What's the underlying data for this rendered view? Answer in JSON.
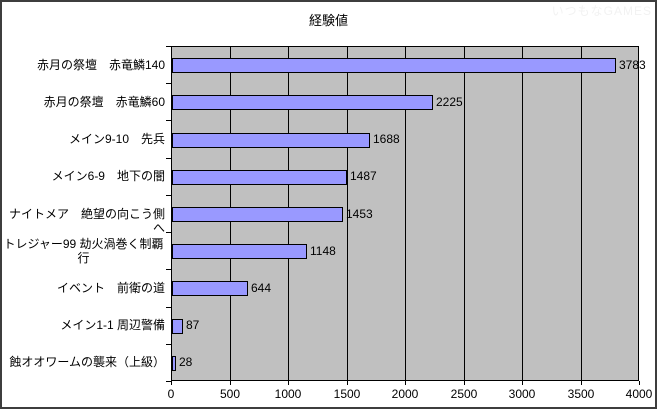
{
  "watermark": {
    "text": "いつもなGAMES"
  },
  "chart_data": {
    "type": "bar",
    "orientation": "horizontal",
    "title": "経験値",
    "categories": [
      "赤月の祭壇　赤竜鱗140",
      "赤月の祭壇　赤竜鱗60",
      "メイン9-10　先兵",
      "メイン6-9　地下の闇",
      "ナイトメア　絶望の向こう側へ",
      "トレジャー99 劫火渦巻く制覇\n行",
      "イベント　前衛の道",
      "メイン1-1 周辺警備",
      "蝕オオワームの襲来（上級）"
    ],
    "values": [
      3783,
      2225,
      1688,
      1487,
      1453,
      1148,
      644,
      87,
      28
    ],
    "value_labels": [
      "3783",
      "2225",
      "1688",
      "1487",
      "1453",
      "1148",
      "644",
      "87",
      "28"
    ],
    "xlabel": "",
    "ylabel": "",
    "xlim": [
      0,
      4000
    ],
    "xticks": [
      0,
      500,
      1000,
      1500,
      2000,
      2500,
      3000,
      3500,
      4000
    ],
    "grid": true,
    "legend": "none",
    "plot_bg_color": "#c0c0c0",
    "bar_fill_color": "#9999ff",
    "bar_border_color": "#000000",
    "gridline_color": "#000000"
  }
}
